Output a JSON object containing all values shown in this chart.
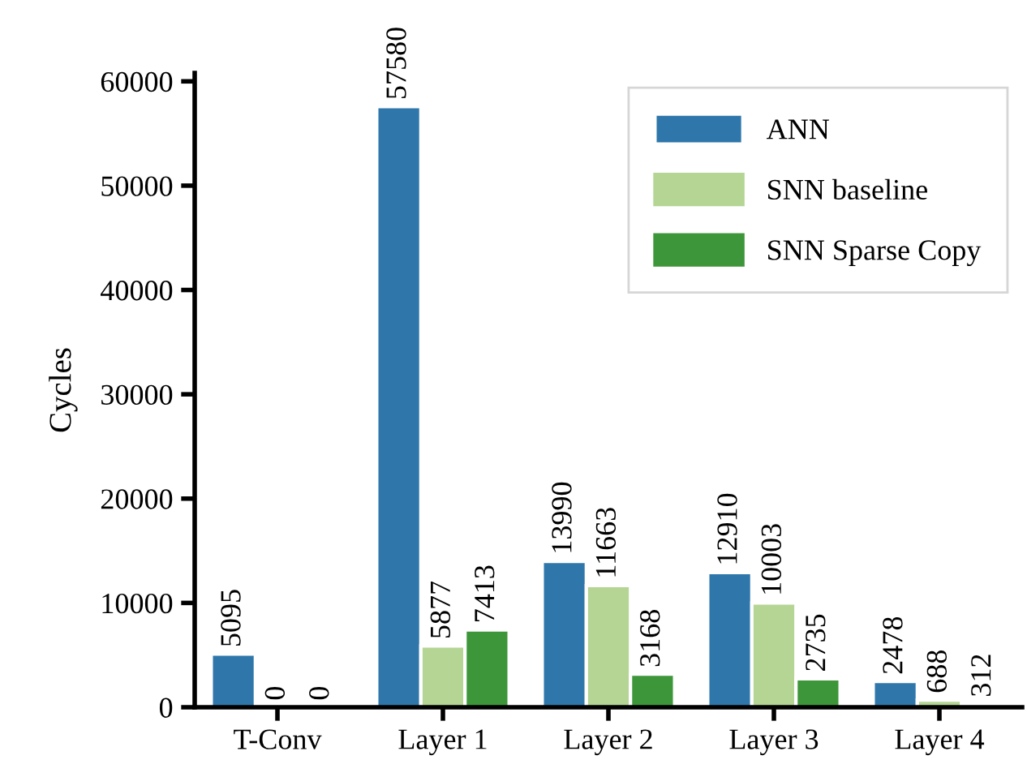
{
  "chart_data": {
    "type": "bar",
    "ylabel": "Cycles",
    "categories": [
      "T-Conv",
      "Layer 1",
      "Layer 2",
      "Layer 3",
      "Layer 4"
    ],
    "series": [
      {
        "name": "ANN",
        "color": "#2f77ab",
        "values": [
          5095,
          57580,
          13990,
          12910,
          2478
        ]
      },
      {
        "name": "SNN baseline",
        "color": "#b4d593",
        "values": [
          0,
          5877,
          11663,
          10003,
          688
        ]
      },
      {
        "name": "SNN Sparse Copy",
        "color": "#3e963a",
        "values": [
          0,
          7413,
          3168,
          2735,
          312
        ]
      }
    ],
    "ylim": [
      0,
      60800
    ],
    "yticks": [
      0,
      10000,
      20000,
      30000,
      40000,
      50000,
      60000
    ],
    "grid": false,
    "legend": "top right",
    "data_labels": true
  }
}
